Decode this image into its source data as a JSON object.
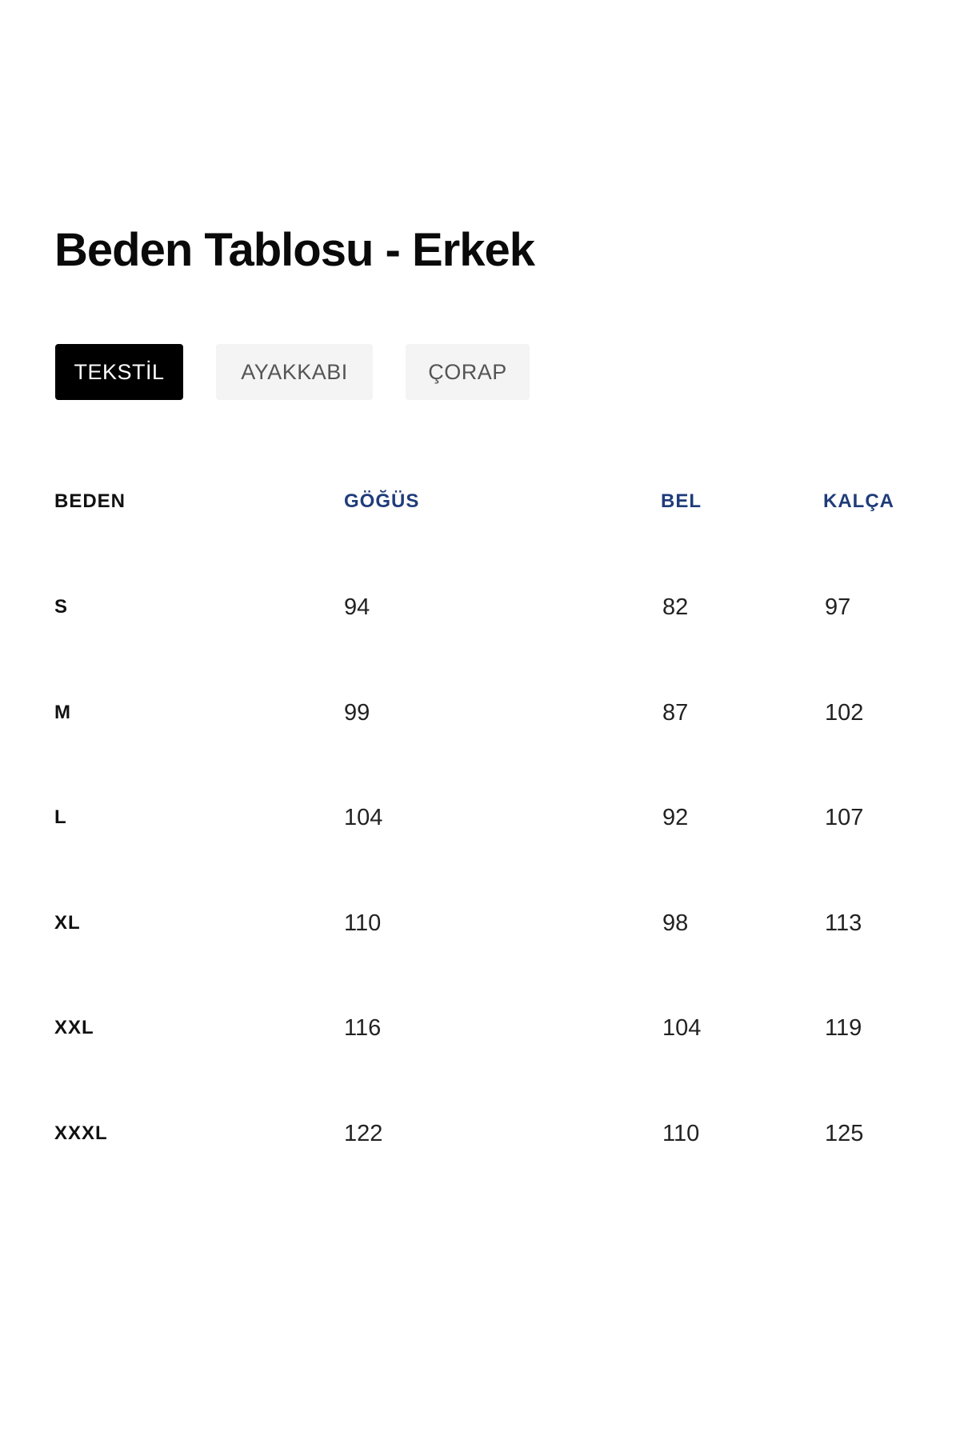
{
  "title": "Beden Tablosu - Erkek",
  "tabs": [
    {
      "label": "TEKSTİL",
      "active": true
    },
    {
      "label": "AYAKKABI",
      "active": false
    },
    {
      "label": "ÇORAP",
      "active": false
    }
  ],
  "colors": {
    "header_blue": "#1f3c7a",
    "active_tab": "#000000",
    "inactive_tab": "#f4f4f4"
  },
  "table": {
    "headers": [
      "BEDEN",
      "GÖĞÜS",
      "BEL",
      "KALÇA"
    ],
    "rows": [
      [
        "S",
        "94",
        "82",
        "97"
      ],
      [
        "M",
        "99",
        "87",
        "102"
      ],
      [
        "L",
        "104",
        "92",
        "107"
      ],
      [
        "XL",
        "110",
        "98",
        "113"
      ],
      [
        "XXL",
        "116",
        "104",
        "119"
      ],
      [
        "XXXL",
        "122",
        "110",
        "125"
      ]
    ]
  }
}
